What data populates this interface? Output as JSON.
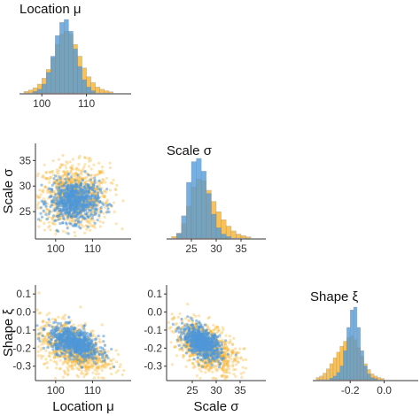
{
  "colors": {
    "series_a": "#f6b12a",
    "series_b": "#4f98d8",
    "overlap": "#5f8a8f"
  },
  "chart_data": [
    {
      "type": "histogram",
      "title": "Location μ",
      "x_ticks": [
        "100",
        "110"
      ],
      "x_range": [
        95,
        120
      ],
      "series": [
        {
          "color": "#f6b12a",
          "values": [
            {
              "x": 96.5,
              "y": 0.02
            },
            {
              "x": 97.5,
              "y": 0.04
            },
            {
              "x": 98.5,
              "y": 0.07
            },
            {
              "x": 99.5,
              "y": 0.12
            },
            {
              "x": 100.5,
              "y": 0.2
            },
            {
              "x": 101.5,
              "y": 0.32
            },
            {
              "x": 102.5,
              "y": 0.48
            },
            {
              "x": 103.5,
              "y": 0.66
            },
            {
              "x": 104.5,
              "y": 0.8
            },
            {
              "x": 105.5,
              "y": 0.84
            },
            {
              "x": 106.5,
              "y": 0.8
            },
            {
              "x": 107.5,
              "y": 0.66
            },
            {
              "x": 108.5,
              "y": 0.5
            },
            {
              "x": 109.5,
              "y": 0.34
            },
            {
              "x": 110.5,
              "y": 0.22
            },
            {
              "x": 111.5,
              "y": 0.14
            },
            {
              "x": 112.5,
              "y": 0.08
            },
            {
              "x": 113.5,
              "y": 0.05
            },
            {
              "x": 114.5,
              "y": 0.03
            },
            {
              "x": 115.5,
              "y": 0.015
            }
          ]
        },
        {
          "color": "#4f98d8",
          "values": [
            {
              "x": 98.5,
              "y": 0.02
            },
            {
              "x": 99.5,
              "y": 0.05
            },
            {
              "x": 100.5,
              "y": 0.12
            },
            {
              "x": 101.5,
              "y": 0.28
            },
            {
              "x": 102.5,
              "y": 0.5
            },
            {
              "x": 103.5,
              "y": 0.78
            },
            {
              "x": 104.5,
              "y": 0.96
            },
            {
              "x": 105.5,
              "y": 1.0
            },
            {
              "x": 106.5,
              "y": 0.84
            },
            {
              "x": 107.5,
              "y": 0.6
            },
            {
              "x": 108.5,
              "y": 0.36
            },
            {
              "x": 109.5,
              "y": 0.18
            },
            {
              "x": 110.5,
              "y": 0.08
            },
            {
              "x": 111.5,
              "y": 0.03
            }
          ]
        }
      ]
    },
    {
      "type": "scatter",
      "xlabel": "",
      "ylabel": "Scale σ",
      "x_ticks": [
        "100",
        "110"
      ],
      "y_ticks": [
        "25",
        "30",
        "35"
      ],
      "x_range": [
        95,
        120
      ],
      "y_range": [
        20,
        38
      ],
      "series": [
        {
          "color": "#f6b12a",
          "center": [
            105,
            28
          ],
          "spread": [
            4.8,
            3.2
          ],
          "correlation": 0.0
        },
        {
          "color": "#4f98d8",
          "center": [
            105,
            27
          ],
          "spread": [
            3.4,
            2.0
          ],
          "correlation": 0.0
        }
      ]
    },
    {
      "type": "histogram",
      "title": "Scale σ",
      "x_ticks": [
        "25",
        "30",
        "35"
      ],
      "x_range": [
        20,
        40
      ],
      "series": [
        {
          "color": "#f6b12a",
          "values": [
            {
              "x": 21.5,
              "y": 0.02
            },
            {
              "x": 22.5,
              "y": 0.06
            },
            {
              "x": 23.5,
              "y": 0.18
            },
            {
              "x": 24.5,
              "y": 0.4
            },
            {
              "x": 25.5,
              "y": 0.64
            },
            {
              "x": 26.5,
              "y": 0.74
            },
            {
              "x": 27.5,
              "y": 0.72
            },
            {
              "x": 28.5,
              "y": 0.6
            },
            {
              "x": 29.5,
              "y": 0.46
            },
            {
              "x": 30.5,
              "y": 0.33
            },
            {
              "x": 31.5,
              "y": 0.23
            },
            {
              "x": 32.5,
              "y": 0.15
            },
            {
              "x": 33.5,
              "y": 0.09
            },
            {
              "x": 34.5,
              "y": 0.05
            },
            {
              "x": 35.5,
              "y": 0.03
            },
            {
              "x": 36.5,
              "y": 0.015
            }
          ]
        },
        {
          "color": "#4f98d8",
          "values": [
            {
              "x": 22.5,
              "y": 0.06
            },
            {
              "x": 23.5,
              "y": 0.28
            },
            {
              "x": 24.5,
              "y": 0.7
            },
            {
              "x": 25.5,
              "y": 0.96
            },
            {
              "x": 26.5,
              "y": 1.0
            },
            {
              "x": 27.5,
              "y": 0.84
            },
            {
              "x": 28.5,
              "y": 0.56
            },
            {
              "x": 29.5,
              "y": 0.3
            },
            {
              "x": 30.5,
              "y": 0.13
            },
            {
              "x": 31.5,
              "y": 0.05
            },
            {
              "x": 32.5,
              "y": 0.02
            }
          ]
        }
      ]
    },
    {
      "type": "scatter",
      "xlabel": "Location μ",
      "ylabel": "Shape ξ",
      "x_ticks": [
        "100",
        "110"
      ],
      "y_ticks": [
        "-0.3",
        "-0.2",
        "-0.1",
        "0.0",
        "0.1"
      ],
      "x_range": [
        95,
        120
      ],
      "y_range": [
        -0.37,
        0.14
      ],
      "series": [
        {
          "color": "#f6b12a",
          "center": [
            105,
            -0.2
          ],
          "spread": [
            4.8,
            0.075
          ],
          "correlation": -0.45
        },
        {
          "color": "#4f98d8",
          "center": [
            105,
            -0.17
          ],
          "spread": [
            3.4,
            0.045
          ],
          "correlation": -0.45
        }
      ]
    },
    {
      "type": "scatter",
      "xlabel": "Scale σ",
      "ylabel": "",
      "x_ticks": [
        "25",
        "30",
        "35"
      ],
      "y_ticks": [
        "-0.3",
        "-0.2",
        "-0.1",
        "0.0",
        "0.1"
      ],
      "x_range": [
        20,
        40
      ],
      "y_range": [
        -0.37,
        0.14
      ],
      "series": [
        {
          "color": "#f6b12a",
          "center": [
            28,
            -0.2
          ],
          "spread": [
            3.2,
            0.075
          ],
          "correlation": -0.5
        },
        {
          "color": "#4f98d8",
          "center": [
            27,
            -0.17
          ],
          "spread": [
            2.0,
            0.045
          ],
          "correlation": -0.5
        }
      ]
    },
    {
      "type": "histogram",
      "title": "Shape ξ",
      "x_ticks": [
        "-0.2",
        "0.0"
      ],
      "x_range": [
        -0.42,
        0.2
      ],
      "series": [
        {
          "color": "#f6b12a",
          "values": [
            {
              "x": -0.39,
              "y": 0.03
            },
            {
              "x": -0.37,
              "y": 0.05
            },
            {
              "x": -0.35,
              "y": 0.09
            },
            {
              "x": -0.33,
              "y": 0.15
            },
            {
              "x": -0.31,
              "y": 0.22
            },
            {
              "x": -0.29,
              "y": 0.3
            },
            {
              "x": -0.27,
              "y": 0.38
            },
            {
              "x": -0.25,
              "y": 0.46
            },
            {
              "x": -0.23,
              "y": 0.53
            },
            {
              "x": -0.21,
              "y": 0.58
            },
            {
              "x": -0.19,
              "y": 0.6
            },
            {
              "x": -0.17,
              "y": 0.55
            },
            {
              "x": -0.15,
              "y": 0.44
            },
            {
              "x": -0.13,
              "y": 0.32
            },
            {
              "x": -0.11,
              "y": 0.22
            },
            {
              "x": -0.09,
              "y": 0.14
            },
            {
              "x": -0.07,
              "y": 0.08
            },
            {
              "x": -0.05,
              "y": 0.05
            },
            {
              "x": -0.03,
              "y": 0.03
            },
            {
              "x": -0.01,
              "y": 0.015
            }
          ]
        },
        {
          "color": "#4f98d8",
          "values": [
            {
              "x": -0.31,
              "y": 0.02
            },
            {
              "x": -0.29,
              "y": 0.05
            },
            {
              "x": -0.27,
              "y": 0.1
            },
            {
              "x": -0.25,
              "y": 0.19
            },
            {
              "x": -0.23,
              "y": 0.4
            },
            {
              "x": -0.21,
              "y": 0.72
            },
            {
              "x": -0.19,
              "y": 0.96
            },
            {
              "x": -0.17,
              "y": 1.0
            },
            {
              "x": -0.15,
              "y": 0.72
            },
            {
              "x": -0.13,
              "y": 0.4
            },
            {
              "x": -0.11,
              "y": 0.19
            },
            {
              "x": -0.09,
              "y": 0.08
            },
            {
              "x": -0.07,
              "y": 0.03
            },
            {
              "x": -0.05,
              "y": 0.015
            }
          ]
        }
      ]
    }
  ]
}
